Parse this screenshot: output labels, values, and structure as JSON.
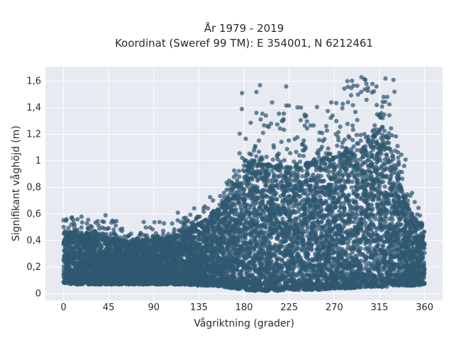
{
  "chart_data": {
    "type": "scatter",
    "title": "År 1979 - 2019",
    "subtitle": "Koordinat (Sweref 99 TM): E 354001, N 6212461",
    "xlabel": "Vågriktning (grader)",
    "ylabel": "Signifikant våghöjd (m)",
    "xlim": [
      -18,
      378
    ],
    "ylim": [
      -0.05,
      1.71
    ],
    "x_ticks": [
      0,
      45,
      90,
      135,
      180,
      225,
      270,
      315,
      360
    ],
    "y_ticks": [
      0,
      0.2,
      0.4,
      0.6,
      0.8,
      1,
      1.2,
      1.4,
      1.6
    ],
    "y_tick_labels": [
      "0",
      "0,2",
      "0,4",
      "0,6",
      "0,8",
      "1",
      "1,2",
      "1,4",
      "1,6"
    ],
    "grid": true,
    "marker_color": "#2f5870",
    "background_color": "#e8eaf2",
    "envelope": {
      "direction": [
        0,
        10,
        20,
        30,
        45,
        60,
        75,
        90,
        105,
        120,
        135,
        150,
        160,
        170,
        180,
        190,
        200,
        210,
        225,
        240,
        255,
        270,
        285,
        300,
        310,
        320,
        330,
        340,
        350,
        360
      ],
      "lower_bound": [
        0.08,
        0.07,
        0.07,
        0.07,
        0.07,
        0.07,
        0.07,
        0.07,
        0.07,
        0.07,
        0.06,
        0.06,
        0.05,
        0.04,
        0.03,
        0.02,
        0.02,
        0.02,
        0.03,
        0.03,
        0.03,
        0.04,
        0.04,
        0.05,
        0.05,
        0.05,
        0.06,
        0.06,
        0.06,
        0.07
      ],
      "dense_upper": [
        0.45,
        0.47,
        0.46,
        0.44,
        0.42,
        0.4,
        0.39,
        0.4,
        0.42,
        0.46,
        0.52,
        0.6,
        0.68,
        0.8,
        0.96,
        1.0,
        0.98,
        0.96,
        0.94,
        0.98,
        1.0,
        1.02,
        1.06,
        1.1,
        1.2,
        1.25,
        0.98,
        0.7,
        0.55,
        0.5
      ],
      "max_outlier": [
        0.57,
        0.59,
        0.56,
        0.56,
        0.58,
        0.52,
        0.48,
        0.54,
        0.55,
        0.6,
        0.67,
        0.75,
        0.8,
        1.1,
        1.5,
        1.58,
        1.45,
        1.3,
        1.57,
        1.4,
        1.45,
        1.44,
        1.6,
        1.62,
        1.61,
        1.62,
        1.35,
        0.95,
        0.7,
        0.58
      ]
    },
    "notable_points": [
      {
        "x": 3,
        "y": 0.56
      },
      {
        "x": 8,
        "y": 0.57
      },
      {
        "x": 14,
        "y": 0.56
      },
      {
        "x": 18,
        "y": 0.58
      },
      {
        "x": 42,
        "y": 0.59
      },
      {
        "x": 80,
        "y": 0.54
      },
      {
        "x": 114,
        "y": 0.61
      },
      {
        "x": 178,
        "y": 1.51
      },
      {
        "x": 196,
        "y": 1.57
      },
      {
        "x": 208,
        "y": 1.44
      },
      {
        "x": 222,
        "y": 1.56
      },
      {
        "x": 242,
        "y": 1.34
      },
      {
        "x": 267,
        "y": 1.44
      },
      {
        "x": 272,
        "y": 1.3
      },
      {
        "x": 283,
        "y": 1.6
      },
      {
        "x": 297,
        "y": 1.63
      },
      {
        "x": 301,
        "y": 1.61
      },
      {
        "x": 308,
        "y": 1.58
      },
      {
        "x": 312,
        "y": 1.56
      },
      {
        "x": 321,
        "y": 1.62
      },
      {
        "x": 329,
        "y": 1.61
      },
      {
        "x": 330,
        "y": 1.52
      },
      {
        "x": 341,
        "y": 1.01
      }
    ]
  }
}
